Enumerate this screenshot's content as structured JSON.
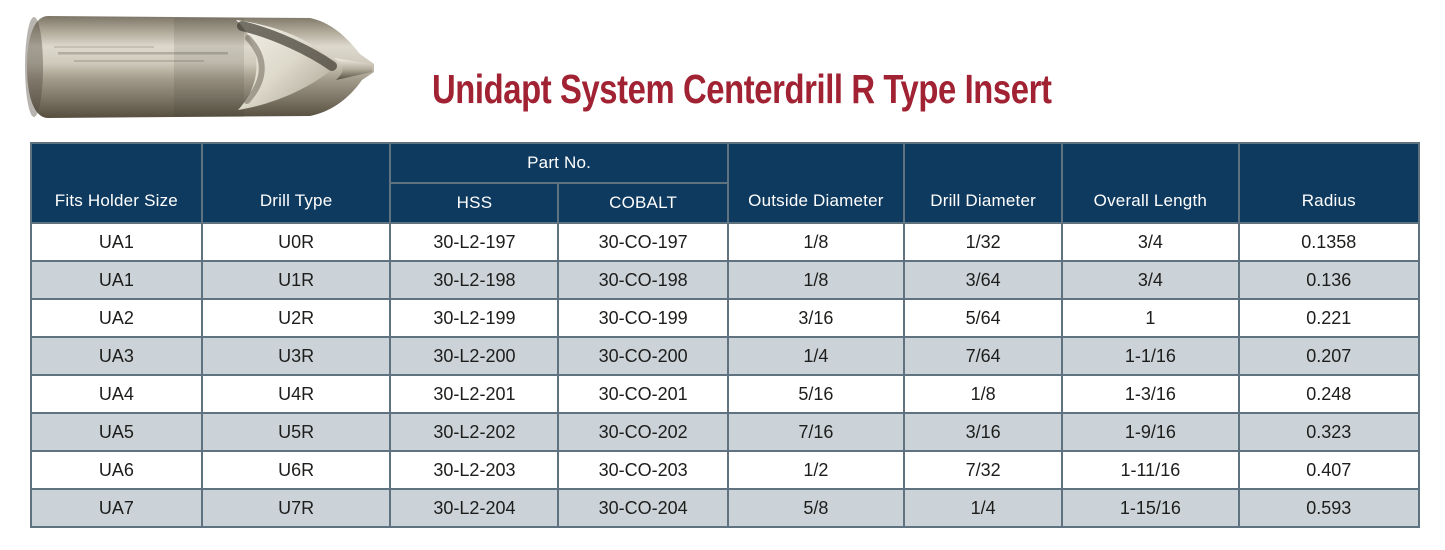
{
  "page": {
    "title": "Unidapt System Centerdrill R Type Insert",
    "title_color": "#a12233",
    "background": "#ffffff"
  },
  "product_image": {
    "name": "centerdrill-r-type-insert-photo",
    "description": "metallic centerdrill R type insert bit, cylindrical body with radius flute and small pilot tip"
  },
  "table": {
    "header": {
      "part_no_group": "Part No.",
      "columns": [
        "Fits Holder Size",
        "Drill Type",
        "HSS",
        "COBALT",
        "Outside Diameter",
        "Drill Diameter",
        "Overall Length",
        "Radius"
      ]
    },
    "rows": [
      [
        "UA1",
        "U0R",
        "30-L2-197",
        "30-CO-197",
        "1/8",
        "1/32",
        "3/4",
        "0.1358"
      ],
      [
        "UA1",
        "U1R",
        "30-L2-198",
        "30-CO-198",
        "1/8",
        "3/64",
        "3/4",
        "0.136"
      ],
      [
        "UA2",
        "U2R",
        "30-L2-199",
        "30-CO-199",
        "3/16",
        "5/64",
        "1",
        "0.221"
      ],
      [
        "UA3",
        "U3R",
        "30-L2-200",
        "30-CO-200",
        "1/4",
        "7/64",
        "1-1/16",
        "0.207"
      ],
      [
        "UA4",
        "U4R",
        "30-L2-201",
        "30-CO-201",
        "5/16",
        "1/8",
        "1-3/16",
        "0.248"
      ],
      [
        "UA5",
        "U5R",
        "30-L2-202",
        "30-CO-202",
        "7/16",
        "3/16",
        "1-9/16",
        "0.323"
      ],
      [
        "UA6",
        "U6R",
        "30-L2-203",
        "30-CO-203",
        "1/2",
        "7/32",
        "1-11/16",
        "0.407"
      ],
      [
        "UA7",
        "U7R",
        "30-L2-204",
        "30-CO-204",
        "5/8",
        "1/4",
        "1-15/16",
        "0.593"
      ]
    ],
    "colors": {
      "header_bg": "#0f3a5f",
      "header_text": "#ffffff",
      "row_bg": "#ffffff",
      "row_alt_bg": "#ccd3d8",
      "grid": "#5e7280",
      "body_text": "#1d1d1b"
    }
  }
}
